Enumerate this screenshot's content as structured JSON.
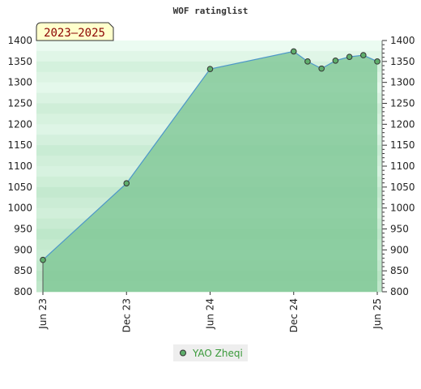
{
  "chart_data": {
    "type": "area",
    "title": "WOF ratinglist",
    "period_label": "2023–2025",
    "x_ticks": [
      "Jun 23",
      "Dec 23",
      "Jun 24",
      "Dec 24",
      "Jun 25"
    ],
    "y_ticks": [
      800,
      850,
      900,
      950,
      1000,
      1050,
      1100,
      1150,
      1200,
      1250,
      1300,
      1350,
      1400
    ],
    "ylim": [
      800,
      1400
    ],
    "xlim": [
      "2023-06",
      "2025-06"
    ],
    "series": [
      {
        "name": "YAO Zheqi",
        "points": [
          {
            "x": "2023-06",
            "y": 876
          },
          {
            "x": "2023-12",
            "y": 1059
          },
          {
            "x": "2024-06",
            "y": 1332
          },
          {
            "x": "2024-12",
            "y": 1374
          },
          {
            "x": "2025-01",
            "y": 1350
          },
          {
            "x": "2025-02",
            "y": 1333
          },
          {
            "x": "2025-03",
            "y": 1352
          },
          {
            "x": "2025-04",
            "y": 1361
          },
          {
            "x": "2025-05",
            "y": 1365
          },
          {
            "x": "2025-06",
            "y": 1350
          }
        ]
      }
    ],
    "colors": {
      "line": "#4d97c9",
      "fill": "#7cc593",
      "marker": "#5fae6c",
      "legend_text": "#3a9a3a",
      "period_bg": "#ffffcc",
      "period_text": "#8b0000"
    },
    "legend_position": "bottom-center",
    "grid": "banded"
  }
}
